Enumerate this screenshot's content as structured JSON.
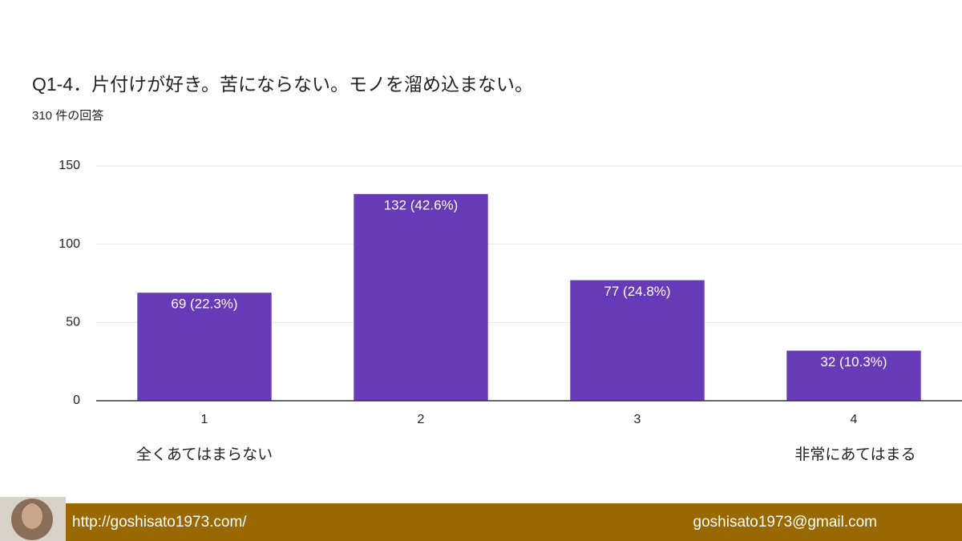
{
  "chart_data": {
    "type": "bar",
    "title": "Q1-4．片付けが好き。苦にならない。モノを溜め込まない。",
    "subtitle": "310 件の回答",
    "categories": [
      "1",
      "2",
      "3",
      "4"
    ],
    "values": [
      69,
      132,
      77,
      32
    ],
    "value_labels": [
      "69 (22.3%)",
      "132 (42.6%)",
      "77 (24.8%)",
      "32 (10.3%)"
    ],
    "color": "#673ab7",
    "ylim": [
      0,
      150
    ],
    "yticks": [
      0,
      50,
      100,
      150
    ],
    "grid": true,
    "annotations": [
      "全くあてはまらない",
      "非常にあてはまる"
    ]
  },
  "footer": {
    "url": "http://goshisato1973.com/",
    "email": "goshisato1973@gmail.com"
  }
}
